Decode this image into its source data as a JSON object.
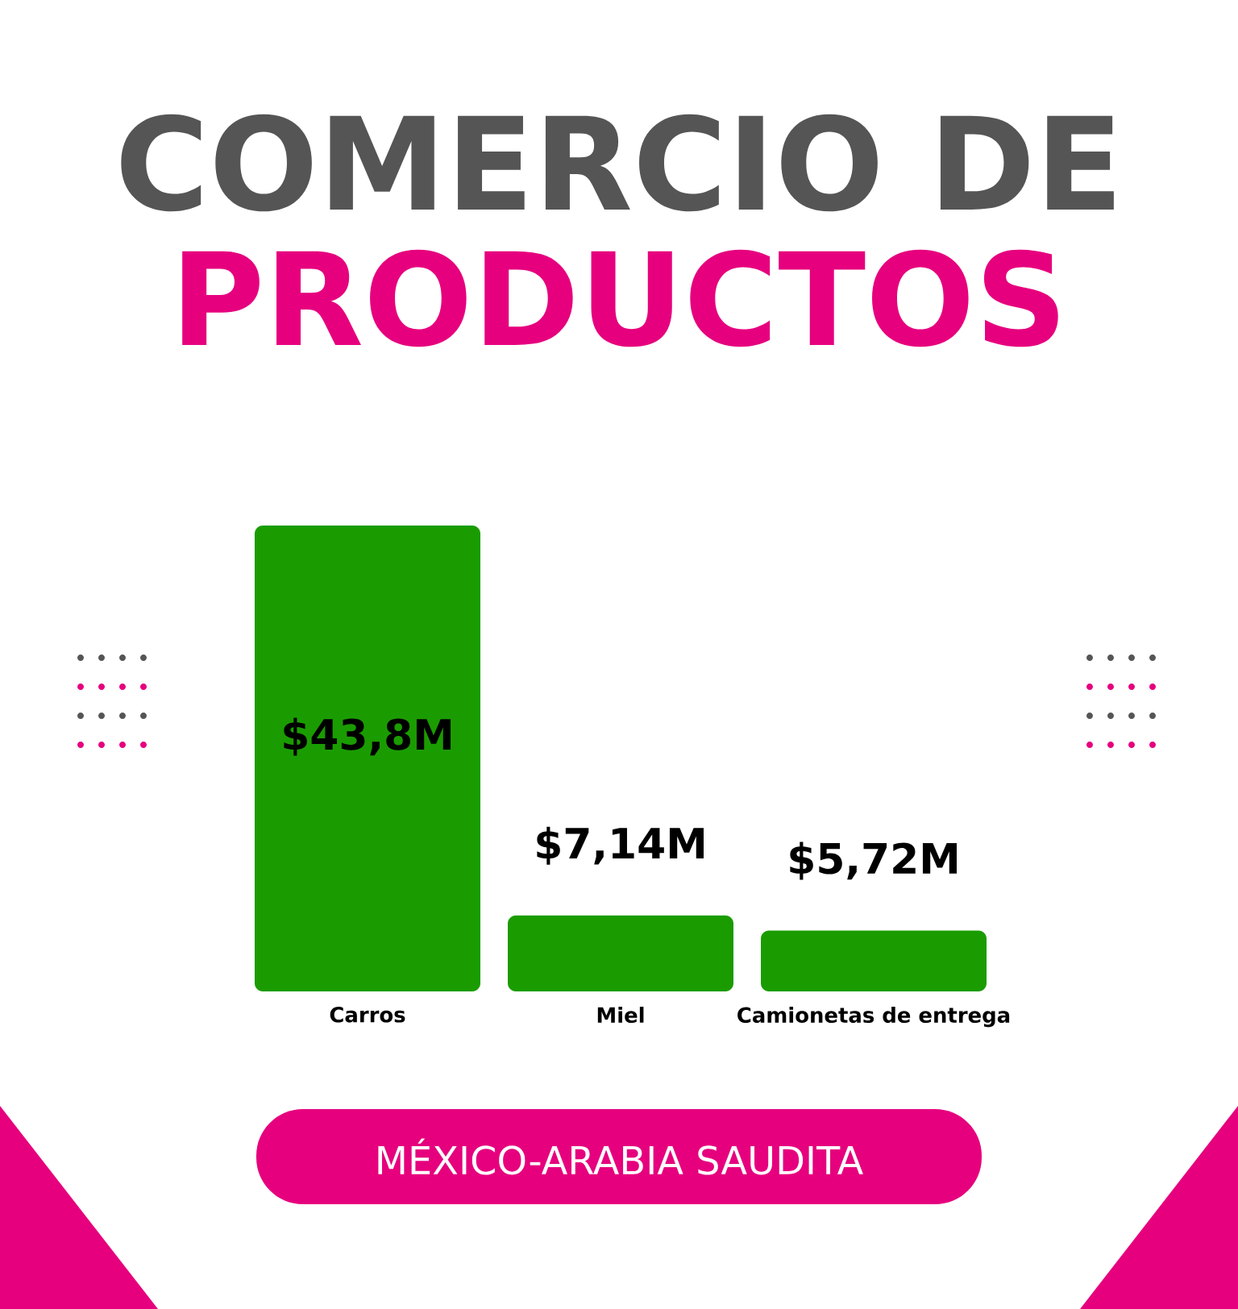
{
  "chart_data": {
    "type": "bar",
    "title": "COMERCIO DE",
    "subtitle": "PRODUCTOS",
    "categories": [
      "Carros",
      "Miel",
      "Camionetas de entrega"
    ],
    "values": [
      43.8,
      7.14,
      5.72
    ],
    "color": "#1a9c00",
    "value_labels": [
      "$43,8M",
      "$7,14M",
      "$5,72M"
    ],
    "annotations": [
      "MÉXICO-ARABIA SAUDITA"
    ],
    "tick_labels": "x"
  }
}
